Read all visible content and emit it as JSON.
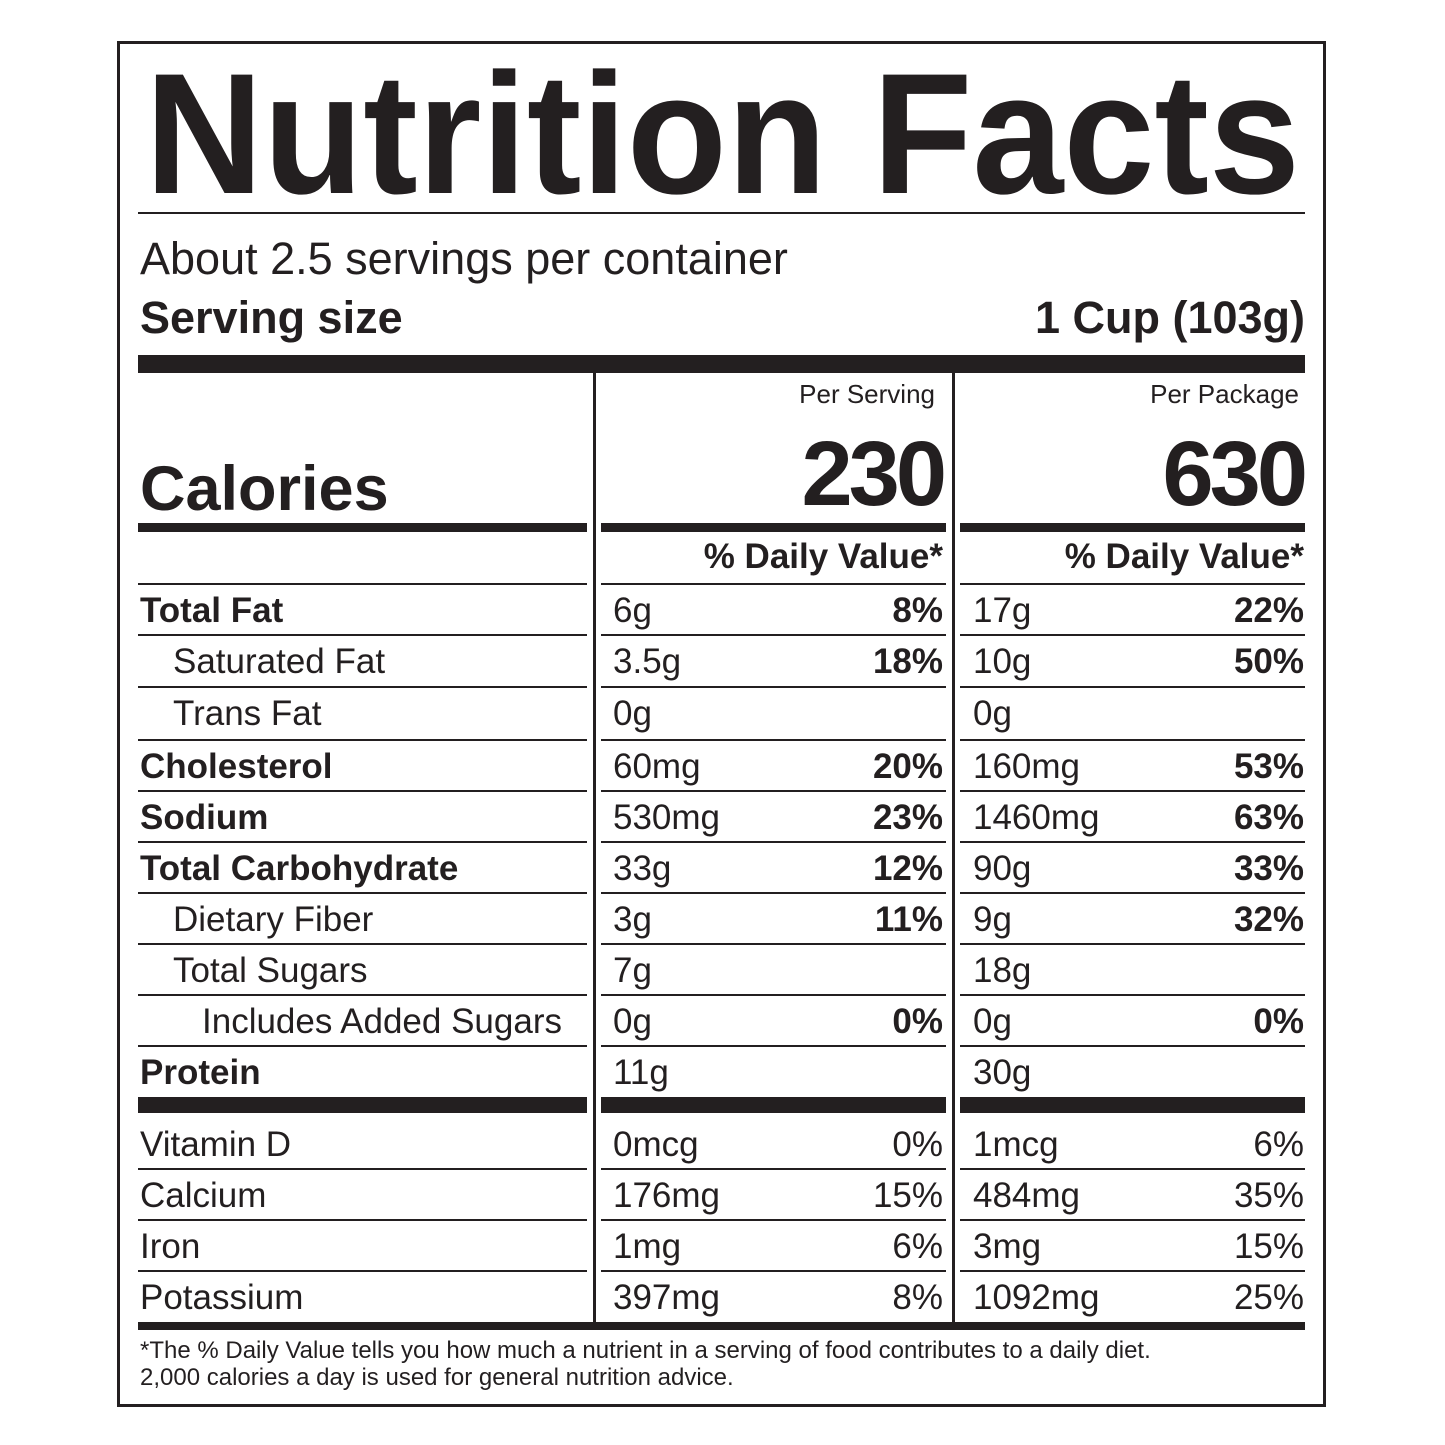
{
  "title": "Nutrition Facts",
  "servings_per_container": "About 2.5 servings per container",
  "serving_size_label": "Serving size",
  "serving_size_value": "1 Cup (103g)",
  "calories_label": "Calories",
  "columns": [
    {
      "header": "Per Serving",
      "calories": "230",
      "dv_header": "% Daily Value*"
    },
    {
      "header": "Per Package",
      "calories": "630",
      "dv_header": "% Daily Value*"
    }
  ],
  "nutrients": [
    {
      "label": "Total Fat",
      "bold": true,
      "indent": 0,
      "serving": {
        "amount": "6g",
        "dv": "8%"
      },
      "package": {
        "amount": "17g",
        "dv": "22%"
      }
    },
    {
      "label": "Saturated Fat",
      "bold": false,
      "indent": 1,
      "serving": {
        "amount": "3.5g",
        "dv": "18%"
      },
      "package": {
        "amount": "10g",
        "dv": "50%"
      }
    },
    {
      "label": "Trans Fat",
      "bold": false,
      "indent": 1,
      "serving": {
        "amount": "0g",
        "dv": ""
      },
      "package": {
        "amount": "0g",
        "dv": ""
      }
    },
    {
      "label": "Cholesterol",
      "bold": true,
      "indent": 0,
      "serving": {
        "amount": "60mg",
        "dv": "20%"
      },
      "package": {
        "amount": "160mg",
        "dv": "53%"
      }
    },
    {
      "label": "Sodium",
      "bold": true,
      "indent": 0,
      "serving": {
        "amount": "530mg",
        "dv": "23%"
      },
      "package": {
        "amount": "1460mg",
        "dv": "63%"
      }
    },
    {
      "label": "Total Carbohydrate",
      "bold": true,
      "indent": 0,
      "serving": {
        "amount": "33g",
        "dv": "12%"
      },
      "package": {
        "amount": "90g",
        "dv": "33%"
      }
    },
    {
      "label": "Dietary Fiber",
      "bold": false,
      "indent": 1,
      "serving": {
        "amount": "3g",
        "dv": "11%"
      },
      "package": {
        "amount": "9g",
        "dv": "32%"
      }
    },
    {
      "label": "Total Sugars",
      "bold": false,
      "indent": 1,
      "serving": {
        "amount": "7g",
        "dv": ""
      },
      "package": {
        "amount": "18g",
        "dv": ""
      }
    },
    {
      "label": "Includes Added Sugars",
      "bold": false,
      "indent": 2,
      "serving": {
        "amount": "0g",
        "dv": "0%"
      },
      "package": {
        "amount": "0g",
        "dv": "0%"
      }
    },
    {
      "label": "Protein",
      "bold": true,
      "indent": 0,
      "serving": {
        "amount": "11g",
        "dv": ""
      },
      "package": {
        "amount": "30g",
        "dv": ""
      }
    }
  ],
  "micronutrients": [
    {
      "label": "Vitamin D",
      "serving": {
        "amount": "0mcg",
        "dv": "0%"
      },
      "package": {
        "amount": "1mcg",
        "dv": "6%"
      }
    },
    {
      "label": "Calcium",
      "serving": {
        "amount": "176mg",
        "dv": "15%"
      },
      "package": {
        "amount": "484mg",
        "dv": "35%"
      }
    },
    {
      "label": "Iron",
      "serving": {
        "amount": "1mg",
        "dv": "6%"
      },
      "package": {
        "amount": "3mg",
        "dv": "15%"
      }
    },
    {
      "label": "Potassium",
      "serving": {
        "amount": "397mg",
        "dv": "8%"
      },
      "package": {
        "amount": "1092mg",
        "dv": "25%"
      }
    }
  ],
  "footnote": [
    "*The % Daily Value tells you how much a nutrient in a serving of food contributes to a daily diet.",
    "2,000 calories a day is used for general nutrition advice."
  ]
}
